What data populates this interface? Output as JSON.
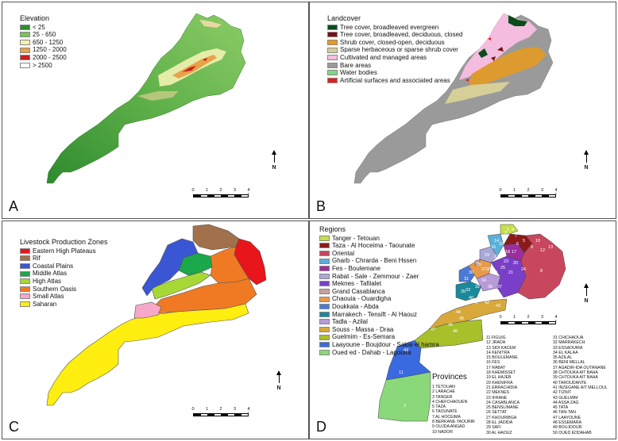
{
  "panels": {
    "a": {
      "letter": "A",
      "legend_title": "Elevation",
      "items": [
        {
          "label": "< 25",
          "color": "#2e8b2e"
        },
        {
          "label": "25 - 650",
          "color": "#79c35a"
        },
        {
          "label": "650 - 1250",
          "color": "#f2f2b0"
        },
        {
          "label": "1250 - 2000",
          "color": "#e8a24a"
        },
        {
          "label": "2000 - 2500",
          "color": "#c8201e"
        },
        {
          "label": "> 2500",
          "color": "#ffffff"
        }
      ]
    },
    "b": {
      "letter": "B",
      "legend_title": "Landcover",
      "items": [
        {
          "label": "Tree cover, broadleaved evergreen",
          "color": "#0b4d1a"
        },
        {
          "label": "Tree cover, broadleaved, deciduous, closed",
          "color": "#7a1012"
        },
        {
          "label": "Shrub cover, closed-open, deciduous",
          "color": "#e89a1c"
        },
        {
          "label": "Sparse herbaceous or sparse shrub cover",
          "color": "#d6cf98"
        },
        {
          "label": "Cultivated and managed areas",
          "color": "#f4bde0"
        },
        {
          "label": "Bare areas",
          "color": "#9a9a9a"
        },
        {
          "label": "Water bodies",
          "color": "#7fd87f"
        },
        {
          "label": "Artificial surfaces and associated areas",
          "color": "#e02020"
        }
      ]
    },
    "c": {
      "letter": "C",
      "legend_title": "Livestock Production Zones",
      "items": [
        {
          "label": "Eastern High Plateaus",
          "color": "#e8151b"
        },
        {
          "label": "Rif",
          "color": "#a0714a"
        },
        {
          "label": "Coastal Plains",
          "color": "#3a56d4"
        },
        {
          "label": "Middle Atlas",
          "color": "#1aa84a"
        },
        {
          "label": "High Atlas",
          "color": "#a7d936"
        },
        {
          "label": "Southern Oasis",
          "color": "#f07a23"
        },
        {
          "label": "Small Atlas",
          "color": "#f5a8c8"
        },
        {
          "label": "Saharan",
          "color": "#ffee10"
        }
      ]
    },
    "d": {
      "letter": "D",
      "legend_title": "Regions",
      "items": [
        {
          "label": "Tanger - Tetouan",
          "color": "#c7df4a"
        },
        {
          "label": "Taza - Al Hoceima - Taounate",
          "color": "#8c1a1a"
        },
        {
          "label": "Oriental",
          "color": "#c8475e"
        },
        {
          "label": "Gharb - Chrarda - Beni Hssen",
          "color": "#5ab0d8"
        },
        {
          "label": "Fes - Boulemane",
          "color": "#9c2d9c"
        },
        {
          "label": "Rabat - Sale - Zemmour - Zaer",
          "color": "#a8a8d8"
        },
        {
          "label": "Meknes - Tafilalet",
          "color": "#7a3fc8"
        },
        {
          "label": "Grand Casablanca",
          "color": "#c8a0a0"
        },
        {
          "label": "Chaouia - Ouardigha",
          "color": "#e89a4a"
        },
        {
          "label": "Doukkala - Abda",
          "color": "#4a7ad8"
        },
        {
          "label": "Marrakech - Tensift - Al Haouz",
          "color": "#1a8a9a"
        },
        {
          "label": "Tadla - Azilal",
          "color": "#b89ad8"
        },
        {
          "label": "Souss - Massa - Draa",
          "color": "#d8a83a"
        },
        {
          "label": "Guelmim - Es-Semara",
          "color": "#a8c02a"
        },
        {
          "label": "Laayoune - Boujdour - Sakia el hamra",
          "color": "#3a6ae0"
        },
        {
          "label": "Oued ed - Dahab - Lagouira",
          "color": "#8ad87a"
        }
      ],
      "provinces_title": "Provinces",
      "province_columns": [
        [
          "1 TETOUAN",
          "2 LARACHE",
          "3 TANGER",
          "4 CHEFCHAOUEN",
          "5 TAZA",
          "6 TAOUNATE",
          "7 AL HOCEIMA",
          "8 BERKANE-TAOURIR",
          "9 OUJDA ANGAD",
          "10 NADOR"
        ],
        [
          "11 FIGUIG",
          "12 JRADA",
          "13 SIDI KACEM",
          "14 KENITRA",
          "15 BOULEMANE",
          "16 FES",
          "17 RABAT",
          "18 KHEMISSET",
          "19 EL HAJEB",
          "20 KHENIFRA",
          "21 ERRACHIDIA",
          "22 MEKNES",
          "23 IFRANE",
          "24 CASABLANCA",
          "25 BENSLIMANE",
          "26 SETTAT",
          "27 KHOURIBGA",
          "28 EL JADIDA",
          "29 SAFI",
          "30 AL HAOUZ"
        ],
        [
          "31 CHICHAOUA",
          "32 MARRAKECH",
          "33 ESSAOUIRA",
          "34 EL KALAA",
          "35 AZILAL",
          "36 BENI MELLAL",
          "37 AGADIR-IDA OUTANANE",
          "38 CHTOUKA AIT BAHA",
          "39 CHTOUKA AIT BAHA",
          "40 TAROUDANTE",
          "41 INZEGANE AIT MELLOUL",
          "42 TIZNIT",
          "43 GUELMIM",
          "44 ASSA ZAG",
          "45 TATA",
          "46 TAN-TAN",
          "47 LAAYOUNE",
          "48 ESSEMARA",
          "49 BOUJDOUR",
          "50 OUED EDDAHAB"
        ]
      ],
      "map_labels": [
        "1",
        "3",
        "4",
        "7",
        "10",
        "5",
        "6",
        "9",
        "12",
        "13",
        "14",
        "16",
        "15",
        "17",
        "18",
        "19",
        "22",
        "23",
        "20",
        "21",
        "24",
        "25",
        "26",
        "27",
        "28",
        "29",
        "30",
        "31",
        "32",
        "33",
        "34",
        "35",
        "36",
        "37",
        "38",
        "39",
        "40",
        "41",
        "42",
        "43",
        "44",
        "45",
        "46",
        "47",
        "48",
        "49",
        "50",
        "11",
        "2",
        "8"
      ]
    }
  },
  "scalebar": {
    "ticks": [
      "0",
      "1",
      "2",
      "3",
      "4"
    ],
    "unit": "°"
  },
  "north_label": "N"
}
